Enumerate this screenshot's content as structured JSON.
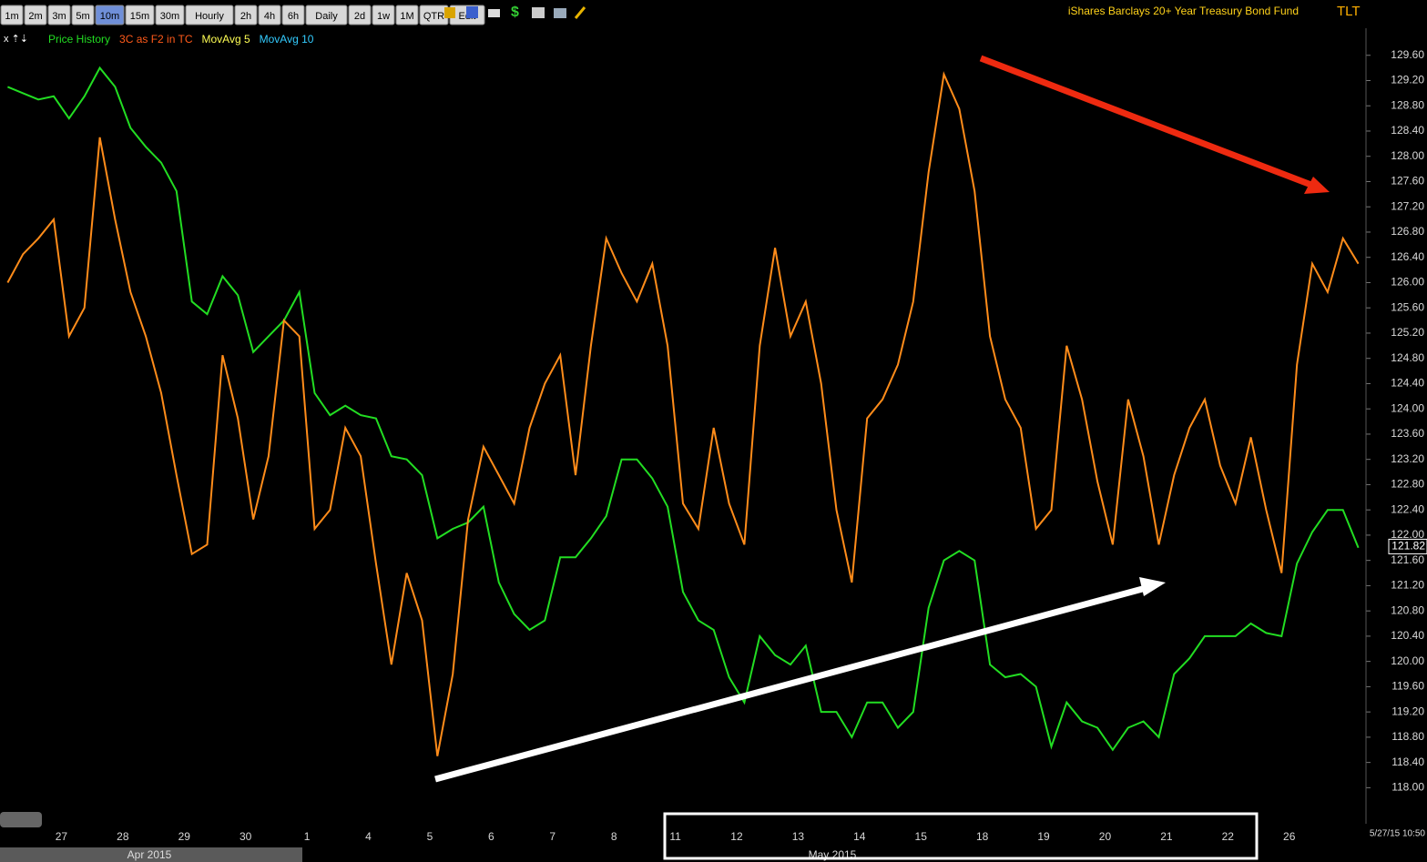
{
  "toolbar": {
    "buttons": [
      "1m",
      "2m",
      "3m",
      "5m",
      "10m",
      "15m",
      "30m",
      "Hourly",
      "2h",
      "4h",
      "6h",
      "Daily",
      "2d",
      "1w",
      "1M",
      "QTR",
      "Edit"
    ],
    "active": "10m"
  },
  "chart_data": {
    "type": "line",
    "title": "iShares Barclays 20+ Year Treasury Bond Fund",
    "symbol": "TLT",
    "indicators": [
      {
        "name": "MovAvg 5",
        "color": "#ffff55"
      },
      {
        "name": "MovAvg 10",
        "color": "#33ccff"
      }
    ],
    "categories": [
      null,
      null,
      null,
      null,
      "27",
      null,
      null,
      null,
      "28",
      null,
      null,
      null,
      "29",
      null,
      null,
      null,
      "30",
      null,
      null,
      null,
      "1",
      null,
      null,
      null,
      "4",
      null,
      null,
      null,
      "5",
      null,
      null,
      null,
      "6",
      null,
      null,
      null,
      "7",
      null,
      null,
      null,
      "8",
      null,
      null,
      null,
      "11",
      null,
      null,
      null,
      "12",
      null,
      null,
      null,
      "13",
      null,
      null,
      null,
      "14",
      null,
      null,
      null,
      "15",
      null,
      null,
      null,
      "18",
      null,
      null,
      null,
      "19",
      null,
      null,
      null,
      "20",
      null,
      null,
      null,
      "21",
      null,
      null,
      null,
      "22",
      null,
      null,
      null,
      "26",
      null,
      null,
      null,
      null
    ],
    "month_labels": [
      "Apr 2015",
      "May 2015"
    ],
    "series": [
      {
        "name": "Price History",
        "color": "#22dd22",
        "values": [
          129.1,
          129.0,
          128.9,
          128.95,
          128.6,
          128.95,
          129.4,
          129.1,
          128.45,
          128.15,
          127.9,
          127.45,
          125.7,
          125.5,
          126.1,
          125.8,
          124.9,
          125.15,
          125.4,
          125.85,
          124.25,
          123.9,
          124.05,
          123.9,
          123.85,
          123.25,
          123.2,
          122.95,
          121.95,
          122.1,
          122.2,
          122.45,
          121.25,
          120.75,
          120.5,
          120.65,
          121.65,
          121.65,
          121.95,
          122.3,
          123.2,
          123.2,
          122.9,
          122.45,
          121.1,
          120.65,
          120.5,
          119.75,
          119.35,
          120.4,
          120.1,
          119.95,
          120.25,
          119.2,
          119.2,
          118.8,
          119.35,
          119.35,
          118.95,
          119.2,
          120.85,
          121.6,
          121.75,
          121.6,
          119.95,
          119.75,
          119.8,
          119.6,
          118.65,
          119.35,
          119.05,
          118.95,
          118.6,
          118.95,
          119.05,
          118.8,
          119.8,
          120.05,
          120.4,
          120.4,
          120.4,
          120.6,
          120.45,
          120.4,
          121.55,
          122.05,
          122.4,
          122.4,
          121.8
        ]
      },
      {
        "name": "3C as F2 in TC",
        "color": "#ff8c1a",
        "legend_color": "#ff5a1a",
        "values": [
          126.0,
          126.45,
          126.7,
          127.0,
          125.15,
          125.6,
          128.3,
          127.0,
          125.85,
          125.15,
          124.25,
          122.95,
          121.7,
          121.85,
          124.85,
          123.85,
          122.25,
          123.25,
          125.4,
          125.15,
          122.1,
          122.4,
          123.7,
          123.25,
          121.55,
          119.95,
          121.4,
          120.65,
          118.5,
          119.8,
          122.25,
          123.4,
          122.95,
          122.5,
          123.7,
          124.4,
          124.85,
          122.95,
          125.0,
          126.7,
          126.15,
          125.7,
          126.3,
          125.0,
          122.5,
          122.1,
          123.7,
          122.5,
          121.85,
          125.0,
          126.55,
          125.15,
          125.7,
          124.4,
          122.4,
          121.25,
          123.85,
          124.15,
          124.7,
          125.7,
          127.75,
          129.3,
          128.75,
          127.45,
          125.15,
          124.15,
          123.7,
          122.1,
          122.4,
          125.0,
          124.15,
          122.85,
          121.85,
          124.15,
          123.25,
          121.85,
          122.95,
          123.7,
          124.15,
          123.1,
          122.5,
          123.55,
          122.4,
          121.4,
          124.7,
          126.3,
          125.85,
          126.7,
          126.3
        ]
      }
    ],
    "last_price": 121.82,
    "timestamp": "5/27/15 10:50",
    "ylim": [
      117.4,
      130.0
    ],
    "yticks": [
      {
        "value": 118.0,
        "label": "118.00"
      },
      {
        "value": 118.4,
        "label": "118.40"
      },
      {
        "value": 118.8,
        "label": "118.80"
      },
      {
        "value": 119.2,
        "label": "119.20"
      },
      {
        "value": 119.6,
        "label": "119.60"
      },
      {
        "value": 120.0,
        "label": "120.00"
      },
      {
        "value": 120.4,
        "label": "120.40"
      },
      {
        "value": 120.8,
        "label": "120.80"
      },
      {
        "value": 121.2,
        "label": "121.20"
      },
      {
        "value": 121.6,
        "label": "121.60"
      },
      {
        "value": 122.0,
        "label": "122.00"
      },
      {
        "value": 122.4,
        "label": "122.40"
      },
      {
        "value": 122.8,
        "label": "122.80"
      },
      {
        "value": 123.2,
        "label": "123.20"
      },
      {
        "value": 123.6,
        "label": "123.60"
      },
      {
        "value": 124.0,
        "label": "124.00"
      },
      {
        "value": 124.4,
        "label": "124.40"
      },
      {
        "value": 124.8,
        "label": "124.80"
      },
      {
        "value": 125.2,
        "label": "125.20"
      },
      {
        "value": 125.6,
        "label": "125.60"
      },
      {
        "value": 126.0,
        "label": "126.00"
      },
      {
        "value": 126.4,
        "label": "126.40"
      },
      {
        "value": 126.8,
        "label": "126.80"
      },
      {
        "value": 127.2,
        "label": "127.20"
      },
      {
        "value": 127.6,
        "label": "127.60"
      },
      {
        "value": 128.0,
        "label": "128.00"
      },
      {
        "value": 128.4,
        "label": "128.40"
      },
      {
        "value": 128.8,
        "label": "128.80"
      },
      {
        "value": 129.2,
        "label": "129.20"
      },
      {
        "value": 129.6,
        "label": "129.60"
      }
    ],
    "grid": false
  }
}
